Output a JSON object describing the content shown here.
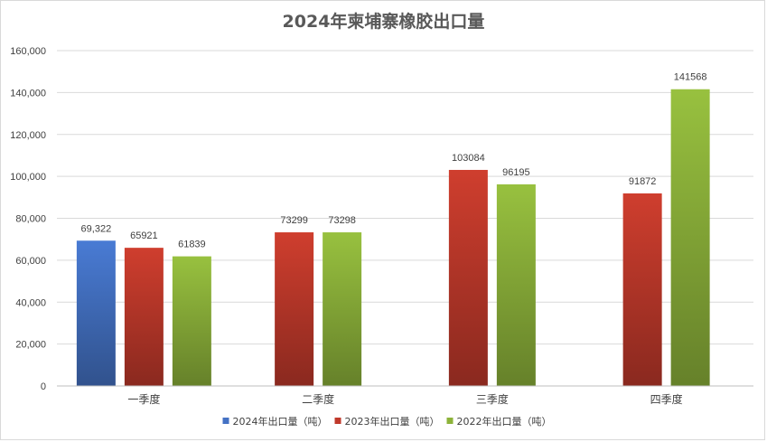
{
  "chart_data": {
    "type": "bar",
    "title": "2024年柬埔寨橡胶出口量",
    "categories": [
      "一季度",
      "二季度",
      "三季度",
      "四季度"
    ],
    "series": [
      {
        "name": "2024年出口量（吨）",
        "color": "#4472c4",
        "values": [
          69322,
          null,
          null,
          null
        ],
        "labels": [
          "69,322",
          "",
          "",
          ""
        ]
      },
      {
        "name": "2023年出口量（吨）",
        "color": "#c0392b",
        "values": [
          65921,
          73299,
          103084,
          91872
        ],
        "labels": [
          "65921",
          "73299",
          "103084",
          "91872"
        ]
      },
      {
        "name": "2022年出口量（吨）",
        "color": "#8db33a",
        "values": [
          61839,
          73298,
          96195,
          141568
        ],
        "labels": [
          "61839",
          "73298",
          "96195",
          "141568"
        ]
      }
    ],
    "ylim": [
      0,
      160000
    ],
    "ytick_step": 20000,
    "yticks": [
      "0",
      "20,000",
      "40,000",
      "60,000",
      "80,000",
      "100,000",
      "120,000",
      "140,000",
      "160,000"
    ],
    "grid": true,
    "legend_position": "bottom",
    "xlabel": "",
    "ylabel": ""
  }
}
